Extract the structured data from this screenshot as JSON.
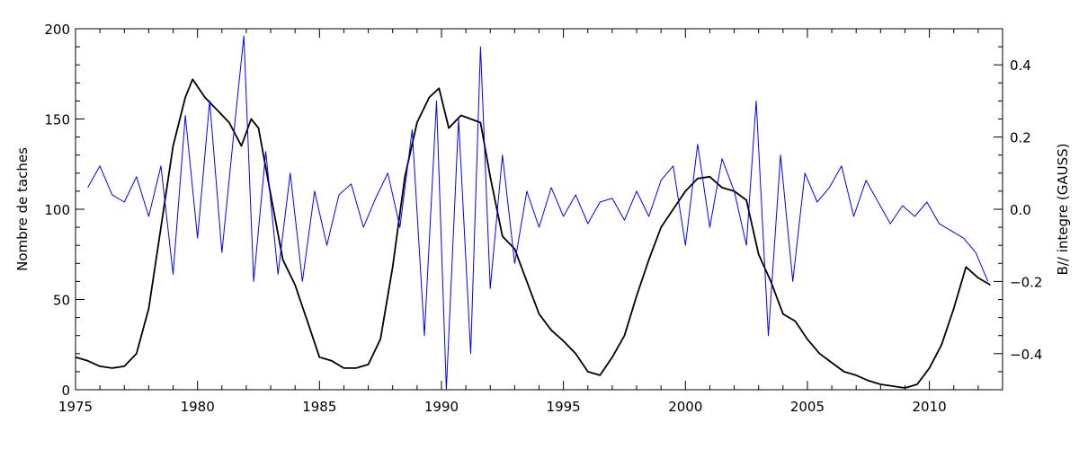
{
  "chart_data": {
    "type": "line",
    "title": "",
    "xlabel": "",
    "ylabel": "Nombre de taches",
    "y2label": "B// integre (GAUSS)",
    "xlim": [
      1975,
      2013
    ],
    "ylim": [
      0,
      200
    ],
    "y2lim": [
      -0.5,
      0.5
    ],
    "x_ticks": [
      1975,
      1980,
      1985,
      1990,
      1995,
      2000,
      2005,
      2010
    ],
    "x_tick_labels": [
      "1975",
      "1980",
      "1985",
      "1990",
      "1995",
      "2000",
      "2005",
      "2010"
    ],
    "y_ticks": [
      0,
      50,
      100,
      150,
      200
    ],
    "y_tick_labels": [
      "0",
      "50",
      "100",
      "150",
      "200"
    ],
    "y2_ticks": [
      -0.4,
      -0.2,
      0.0,
      0.2,
      0.4
    ],
    "y2_tick_labels": [
      "−0.4",
      "−0.2",
      "0.0",
      "0.2",
      "0.4"
    ],
    "grid": false,
    "series": [
      {
        "axis": "left",
        "color": "#000000",
        "x": [
          1975.0,
          1975.5,
          1976.0,
          1976.5,
          1977.0,
          1977.5,
          1978.0,
          1978.5,
          1979.0,
          1979.5,
          1979.8,
          1980.3,
          1980.8,
          1981.3,
          1981.8,
          1982.2,
          1982.5,
          1983.0,
          1983.5,
          1984.0,
          1984.5,
          1985.0,
          1985.5,
          1986.0,
          1986.5,
          1987.0,
          1987.5,
          1988.0,
          1988.5,
          1989.0,
          1989.5,
          1989.9,
          1990.3,
          1990.8,
          1991.2,
          1991.6,
          1992.0,
          1992.5,
          1993.0,
          1993.5,
          1994.0,
          1994.5,
          1995.0,
          1995.5,
          1996.0,
          1996.5,
          1997.0,
          1997.5,
          1998.0,
          1998.5,
          1999.0,
          1999.5,
          2000.0,
          2000.5,
          2001.0,
          2001.5,
          2002.0,
          2002.5,
          2003.0,
          2003.5,
          2004.0,
          2004.5,
          2005.0,
          2005.5,
          2006.0,
          2006.5,
          2007.0,
          2007.5,
          2008.0,
          2008.5,
          2009.0,
          2009.5,
          2010.0,
          2010.5,
          2011.0,
          2011.5,
          2012.0,
          2012.5
        ],
        "values": [
          18,
          16,
          13,
          12,
          13,
          20,
          45,
          90,
          135,
          162,
          172,
          162,
          155,
          148,
          135,
          150,
          145,
          108,
          72,
          58,
          38,
          18,
          16,
          12,
          12,
          14,
          28,
          68,
          118,
          148,
          162,
          167,
          145,
          152,
          150,
          148,
          118,
          85,
          78,
          60,
          42,
          33,
          27,
          20,
          10,
          8,
          18,
          30,
          52,
          72,
          90,
          100,
          110,
          117,
          118,
          112,
          110,
          105,
          75,
          60,
          42,
          38,
          28,
          20,
          15,
          10,
          8,
          5,
          3,
          2,
          1,
          3,
          12,
          25,
          45,
          68,
          62,
          58
        ]
      },
      {
        "axis": "right",
        "color": "#0000ff",
        "x": [
          1975.5,
          1976.0,
          1976.5,
          1977.0,
          1977.5,
          1978.0,
          1978.5,
          1979.0,
          1979.5,
          1980.0,
          1980.5,
          1981.0,
          1981.5,
          1981.9,
          1982.3,
          1982.8,
          1983.3,
          1983.8,
          1984.3,
          1984.8,
          1985.3,
          1985.8,
          1986.3,
          1986.8,
          1987.3,
          1987.8,
          1988.3,
          1988.8,
          1989.3,
          1989.8,
          1990.2,
          1990.7,
          1991.2,
          1991.6,
          1992.0,
          1992.5,
          1993.0,
          1993.5,
          1994.0,
          1994.5,
          1995.0,
          1995.5,
          1996.0,
          1996.5,
          1997.0,
          1997.5,
          1998.0,
          1998.5,
          1999.0,
          1999.5,
          2000.0,
          2000.5,
          2001.0,
          2001.5,
          2002.0,
          2002.5,
          2002.9,
          2003.4,
          2003.9,
          2004.4,
          2004.9,
          2005.4,
          2005.9,
          2006.4,
          2006.9,
          2007.4,
          2007.9,
          2008.4,
          2008.9,
          2009.4,
          2009.9,
          2010.4,
          2010.9,
          2011.4,
          2011.9,
          2012.4
        ],
        "values": [
          0.06,
          0.12,
          0.04,
          0.02,
          0.09,
          -0.02,
          0.12,
          -0.18,
          0.26,
          -0.08,
          0.3,
          -0.12,
          0.22,
          0.48,
          -0.2,
          0.16,
          -0.18,
          0.1,
          -0.2,
          0.05,
          -0.1,
          0.04,
          0.07,
          -0.05,
          0.03,
          0.1,
          -0.05,
          0.22,
          -0.35,
          0.3,
          -0.5,
          0.25,
          -0.4,
          0.45,
          -0.22,
          0.15,
          -0.15,
          0.05,
          -0.05,
          0.06,
          -0.02,
          0.04,
          -0.04,
          0.02,
          0.03,
          -0.03,
          0.05,
          -0.02,
          0.08,
          0.12,
          -0.1,
          0.18,
          -0.05,
          0.14,
          0.05,
          -0.1,
          0.3,
          -0.35,
          0.15,
          -0.2,
          0.1,
          0.02,
          0.06,
          0.12,
          -0.02,
          0.08,
          0.02,
          -0.04,
          0.01,
          -0.02,
          0.02,
          -0.04,
          -0.06,
          -0.08,
          -0.12,
          -0.2
        ]
      }
    ]
  }
}
